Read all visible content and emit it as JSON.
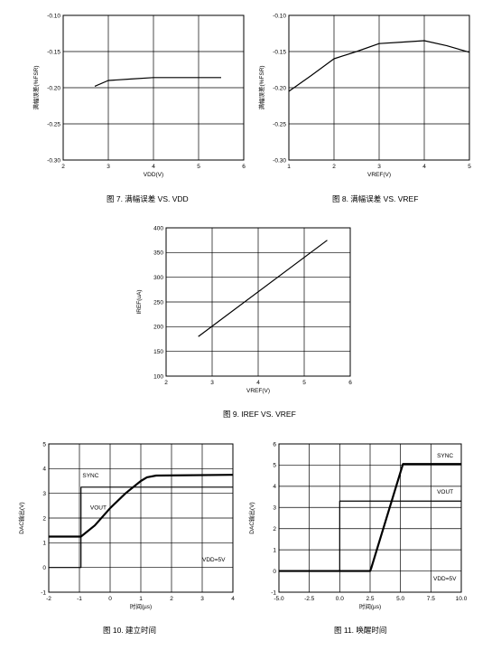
{
  "chart_data": [
    {
      "id": "c7",
      "type": "line",
      "caption": "图 7. 满幅误差 VS. VDD",
      "xlabel": "VDD(V)",
      "ylabel": "满幅误差(%FSR)",
      "xlim": [
        2,
        6
      ],
      "ylim": [
        -0.3,
        -0.1
      ],
      "xticks": [
        2,
        3,
        4,
        5,
        6
      ],
      "yticks": [
        -0.3,
        -0.25,
        -0.2,
        -0.15,
        -0.1
      ],
      "xtick_labels": [
        "2",
        "3",
        "4",
        "5",
        "6"
      ],
      "ytick_labels": [
        "-0.30",
        "-0.25",
        "-0.20",
        "-0.15",
        "-0.10"
      ],
      "grid": true,
      "series": [
        {
          "x": [
            2.7,
            3.0,
            3.5,
            4.0,
            4.5,
            5.0,
            5.5
          ],
          "y": [
            -0.198,
            -0.19,
            -0.188,
            -0.186,
            -0.186,
            -0.186,
            -0.186
          ]
        }
      ],
      "annotations": []
    },
    {
      "id": "c8",
      "type": "line",
      "caption": "图 8. 满幅误差 VS. VREF",
      "xlabel": "VREF(V)",
      "ylabel": "满幅误差(%FSR)",
      "xlim": [
        1,
        5
      ],
      "ylim": [
        -0.3,
        -0.1
      ],
      "xticks": [
        1,
        2,
        3,
        4,
        5
      ],
      "yticks": [
        -0.3,
        -0.25,
        -0.2,
        -0.15,
        -0.1
      ],
      "xtick_labels": [
        "1",
        "2",
        "3",
        "4",
        "5"
      ],
      "ytick_labels": [
        "-0.30",
        "-0.25",
        "-0.20",
        "-0.15",
        "-0.10"
      ],
      "grid": true,
      "series": [
        {
          "x": [
            1.0,
            1.5,
            2.0,
            2.5,
            3.0,
            3.5,
            4.0,
            4.5,
            5.0
          ],
          "y": [
            -0.205,
            -0.183,
            -0.16,
            -0.15,
            -0.139,
            -0.137,
            -0.135,
            -0.142,
            -0.151
          ]
        }
      ],
      "annotations": []
    },
    {
      "id": "c9",
      "type": "line",
      "caption": "图 9. IREF VS. VREF",
      "xlabel": "VREF(V)",
      "ylabel": "IREF(uA)",
      "xlim": [
        2,
        6
      ],
      "ylim": [
        100,
        400
      ],
      "xticks": [
        2,
        3,
        4,
        5,
        6
      ],
      "yticks": [
        100,
        150,
        200,
        250,
        300,
        350,
        400
      ],
      "xtick_labels": [
        "2",
        "3",
        "4",
        "5",
        "6"
      ],
      "ytick_labels": [
        "100",
        "150",
        "200",
        "250",
        "300",
        "350",
        "400"
      ],
      "grid": true,
      "series": [
        {
          "x": [
            2.7,
            5.5
          ],
          "y": [
            180,
            375
          ]
        }
      ],
      "annotations": []
    },
    {
      "id": "c10",
      "type": "line",
      "caption": "图 10. 建立时间",
      "xlabel": "时间(µs)",
      "ylabel": "DAC输出(V)",
      "xlim": [
        -2,
        4
      ],
      "ylim": [
        -1,
        5
      ],
      "xticks": [
        -2,
        -1,
        0,
        1,
        2,
        3,
        4
      ],
      "yticks": [
        -1,
        0,
        1,
        2,
        3,
        4,
        5
      ],
      "xtick_labels": [
        "-2",
        "-1",
        "0",
        "1",
        "2",
        "3",
        "4"
      ],
      "ytick_labels": [
        "-1",
        "0",
        "1",
        "2",
        "3",
        "4",
        "5"
      ],
      "grid": true,
      "series": [
        {
          "label": "SYNC",
          "x": [
            -2,
            -0.95,
            -0.95,
            4
          ],
          "y": [
            0,
            0,
            3.25,
            3.25
          ],
          "thick": false
        },
        {
          "label": "VOUT",
          "x": [
            -2,
            -0.95,
            -0.95,
            -0.5,
            0,
            0.5,
            1.0,
            1.2,
            1.5,
            4
          ],
          "y": [
            1.25,
            1.25,
            1.25,
            1.7,
            2.4,
            3.0,
            3.5,
            3.65,
            3.72,
            3.75
          ],
          "thick": true
        }
      ],
      "annotations": [
        {
          "text": "SYNC",
          "x": -0.9,
          "y": 3.65
        },
        {
          "text": "VOUT",
          "x": -0.65,
          "y": 2.35
        },
        {
          "text": "VDD=5V",
          "x": 3.0,
          "y": 0.25
        }
      ]
    },
    {
      "id": "c11",
      "type": "line",
      "caption": "图 11. 唤醒时间",
      "xlabel": "时间(µs)",
      "ylabel": "DAC输出(V)",
      "xlim": [
        -5,
        10
      ],
      "ylim": [
        -1,
        6
      ],
      "xticks": [
        -5,
        -2.5,
        0,
        2.5,
        5,
        7.5,
        10
      ],
      "yticks": [
        -1,
        0,
        1,
        2,
        3,
        4,
        5,
        6
      ],
      "xtick_labels": [
        "-5.0",
        "-2.5",
        "0.0",
        "2.5",
        "5.0",
        "7.5",
        "10.0"
      ],
      "ytick_labels": [
        "-1",
        "0",
        "1",
        "2",
        "3",
        "4",
        "5",
        "6"
      ],
      "grid": true,
      "series": [
        {
          "label": "SYNC",
          "x": [
            -5,
            0,
            0,
            10
          ],
          "y": [
            0,
            0,
            3.3,
            3.3
          ],
          "thick": false
        },
        {
          "label": "VOUT",
          "x": [
            -5,
            2.5,
            2.6,
            5.2,
            10
          ],
          "y": [
            0,
            0,
            0.15,
            5.05,
            5.05
          ],
          "thick": true
        }
      ],
      "annotations": [
        {
          "text": "SYNC",
          "x": 8.0,
          "y": 5.35
        },
        {
          "text": "VOUT",
          "x": 8.0,
          "y": 3.65
        },
        {
          "text": "VDD=5V",
          "x": 7.7,
          "y": -0.45
        }
      ]
    }
  ]
}
